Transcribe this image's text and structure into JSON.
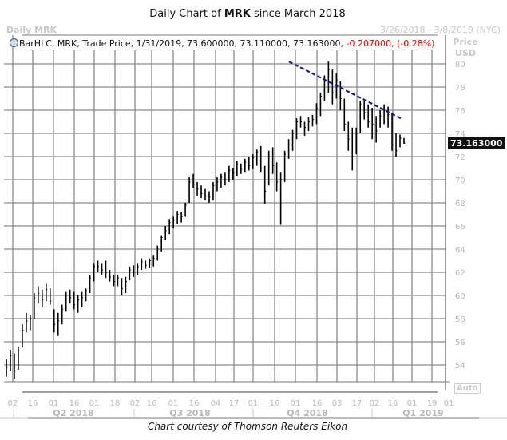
{
  "header": {
    "title_prefix": "Daily Chart of ",
    "title_ticker": "MRK",
    "title_suffix": " since March 2018",
    "series_name": "Daily MRK",
    "date_range": "3/26/2018 - 3/8/2019 (NYC)"
  },
  "legend": {
    "icon": "clock-icon",
    "text": "BarHLC, MRK, Trade Price,  1/31/2019, 73.600000, 73.110000, 73.163000,",
    "change": "-0.207000, (-0.28%)"
  },
  "price_axis": {
    "title": "Price",
    "unit": "USD",
    "last_value": "73.163000",
    "auto_label": "Auto"
  },
  "footer": "Chart courtesy of Thomson Reuters Eikon",
  "chart_data": {
    "type": "bar-hlc",
    "title": "Daily Chart of MRK since March 2018",
    "ylim": [
      53,
      81
    ],
    "yticks": [
      54,
      56,
      58,
      60,
      62,
      64,
      66,
      68,
      70,
      72,
      74,
      76,
      78,
      80
    ],
    "xticks": [
      "02",
      "16",
      "01",
      "16",
      "01",
      "18",
      "02",
      "16",
      "01",
      "16",
      "04",
      "17",
      "01",
      "16",
      "01",
      "16",
      "03",
      "17",
      "02",
      "16",
      "01",
      "19",
      "01"
    ],
    "quarters": [
      "Q2 2018",
      "Q3 2018",
      "Q4 2018",
      "Q1 2019"
    ],
    "grid": true,
    "x_start": "3/26/2018",
    "x_end": "1/31/2019",
    "bar_color": "#000000",
    "bars_hlc": [
      [
        54.5,
        53.0,
        53.8
      ],
      [
        55.3,
        53.5,
        54.8
      ],
      [
        55.0,
        52.8,
        53.5
      ],
      [
        55.6,
        53.6,
        55.2
      ],
      [
        57.5,
        55.5,
        57.0
      ],
      [
        58.5,
        56.8,
        57.8
      ],
      [
        58.3,
        57.0,
        58.0
      ],
      [
        60.2,
        58.0,
        59.8
      ],
      [
        60.8,
        59.3,
        60.2
      ],
      [
        60.5,
        59.0,
        59.6
      ],
      [
        61.0,
        59.5,
        60.5
      ],
      [
        60.6,
        59.2,
        59.5
      ],
      [
        58.8,
        56.8,
        57.5
      ],
      [
        58.5,
        56.5,
        57.8
      ],
      [
        59.2,
        57.5,
        58.8
      ],
      [
        60.3,
        58.6,
        60.0
      ],
      [
        60.5,
        59.3,
        59.8
      ],
      [
        60.3,
        58.8,
        59.2
      ],
      [
        60.0,
        58.5,
        59.6
      ],
      [
        60.3,
        59.0,
        59.8
      ],
      [
        60.6,
        59.5,
        60.4
      ],
      [
        61.8,
        60.2,
        61.5
      ],
      [
        62.8,
        61.2,
        62.5
      ],
      [
        63.0,
        62.0,
        62.5
      ],
      [
        62.8,
        61.8,
        62.2
      ],
      [
        63.0,
        61.5,
        62.0
      ],
      [
        62.2,
        61.2,
        61.6
      ],
      [
        61.8,
        60.8,
        61.2
      ],
      [
        61.8,
        60.8,
        61.5
      ],
      [
        61.5,
        60.0,
        60.6
      ],
      [
        61.6,
        60.2,
        61.2
      ],
      [
        62.5,
        61.3,
        62.2
      ],
      [
        62.6,
        61.6,
        62.0
      ],
      [
        62.8,
        61.8,
        62.5
      ],
      [
        63.2,
        62.2,
        62.9
      ],
      [
        63.0,
        62.3,
        62.6
      ],
      [
        63.2,
        62.4,
        63.0
      ],
      [
        63.5,
        62.5,
        63.2
      ],
      [
        64.3,
        63.0,
        64.0
      ],
      [
        65.2,
        63.8,
        65.0
      ],
      [
        66.0,
        64.8,
        65.6
      ],
      [
        66.6,
        65.3,
        66.3
      ],
      [
        66.8,
        65.8,
        66.5
      ],
      [
        67.3,
        66.2,
        67.0
      ],
      [
        67.2,
        66.3,
        66.8
      ],
      [
        68.0,
        66.8,
        67.8
      ],
      [
        70.2,
        68.0,
        69.8
      ],
      [
        70.5,
        69.3,
        69.6
      ],
      [
        69.8,
        68.6,
        69.2
      ],
      [
        69.5,
        68.4,
        68.8
      ],
      [
        69.2,
        68.2,
        68.6
      ],
      [
        69.0,
        68.0,
        68.5
      ],
      [
        69.8,
        68.2,
        69.5
      ],
      [
        70.2,
        69.0,
        69.8
      ],
      [
        70.5,
        69.3,
        70.2
      ],
      [
        70.6,
        69.5,
        70.0
      ],
      [
        71.2,
        69.8,
        70.8
      ],
      [
        71.0,
        70.0,
        70.6
      ],
      [
        71.6,
        70.3,
        71.3
      ],
      [
        71.4,
        70.5,
        70.9
      ],
      [
        71.8,
        70.6,
        71.5
      ],
      [
        72.0,
        70.8,
        71.2
      ],
      [
        72.2,
        70.9,
        71.9
      ],
      [
        72.6,
        71.2,
        72.4
      ],
      [
        72.9,
        70.6,
        71.0
      ],
      [
        71.2,
        67.9,
        69.0
      ],
      [
        72.5,
        69.5,
        72.0
      ],
      [
        72.8,
        70.5,
        71.2
      ],
      [
        71.5,
        69.0,
        69.8
      ],
      [
        70.6,
        66.1,
        70.0
      ],
      [
        72.5,
        69.8,
        72.2
      ],
      [
        73.5,
        71.8,
        73.0
      ],
      [
        74.3,
        72.5,
        74.0
      ],
      [
        75.3,
        73.5,
        75.0
      ],
      [
        75.5,
        74.5,
        75.0
      ],
      [
        75.0,
        73.8,
        74.5
      ],
      [
        75.4,
        74.2,
        75.0
      ],
      [
        75.6,
        74.6,
        75.2
      ],
      [
        76.6,
        74.8,
        76.2
      ],
      [
        77.5,
        75.5,
        77.2
      ],
      [
        79.0,
        76.8,
        78.5
      ],
      [
        80.2,
        77.5,
        79.5
      ],
      [
        79.5,
        76.5,
        77.5
      ],
      [
        79.2,
        77.0,
        78.6
      ],
      [
        78.5,
        76.0,
        77.0
      ],
      [
        77.0,
        74.2,
        74.8
      ],
      [
        75.0,
        72.5,
        73.5
      ],
      [
        74.5,
        70.8,
        72.0
      ],
      [
        74.5,
        72.2,
        74.0
      ],
      [
        76.8,
        74.0,
        76.5
      ],
      [
        76.8,
        75.2,
        75.8
      ],
      [
        76.5,
        74.5,
        75.0
      ],
      [
        76.2,
        73.5,
        74.8
      ],
      [
        75.5,
        73.2,
        74.2
      ],
      [
        76.0,
        74.5,
        75.5
      ],
      [
        76.5,
        74.8,
        76.0
      ],
      [
        76.3,
        74.5,
        75.6
      ],
      [
        75.8,
        72.5,
        73.0
      ],
      [
        74.0,
        72.0,
        72.5
      ],
      [
        73.9,
        72.8,
        73.6
      ],
      [
        73.6,
        73.11,
        73.163
      ]
    ],
    "trendline": {
      "color": "#1a1a8c",
      "style": "dashed",
      "start": {
        "date": "11/2/2018",
        "price": 80.2
      },
      "end": {
        "date": "1/31/2019",
        "price": 75.3
      }
    }
  }
}
